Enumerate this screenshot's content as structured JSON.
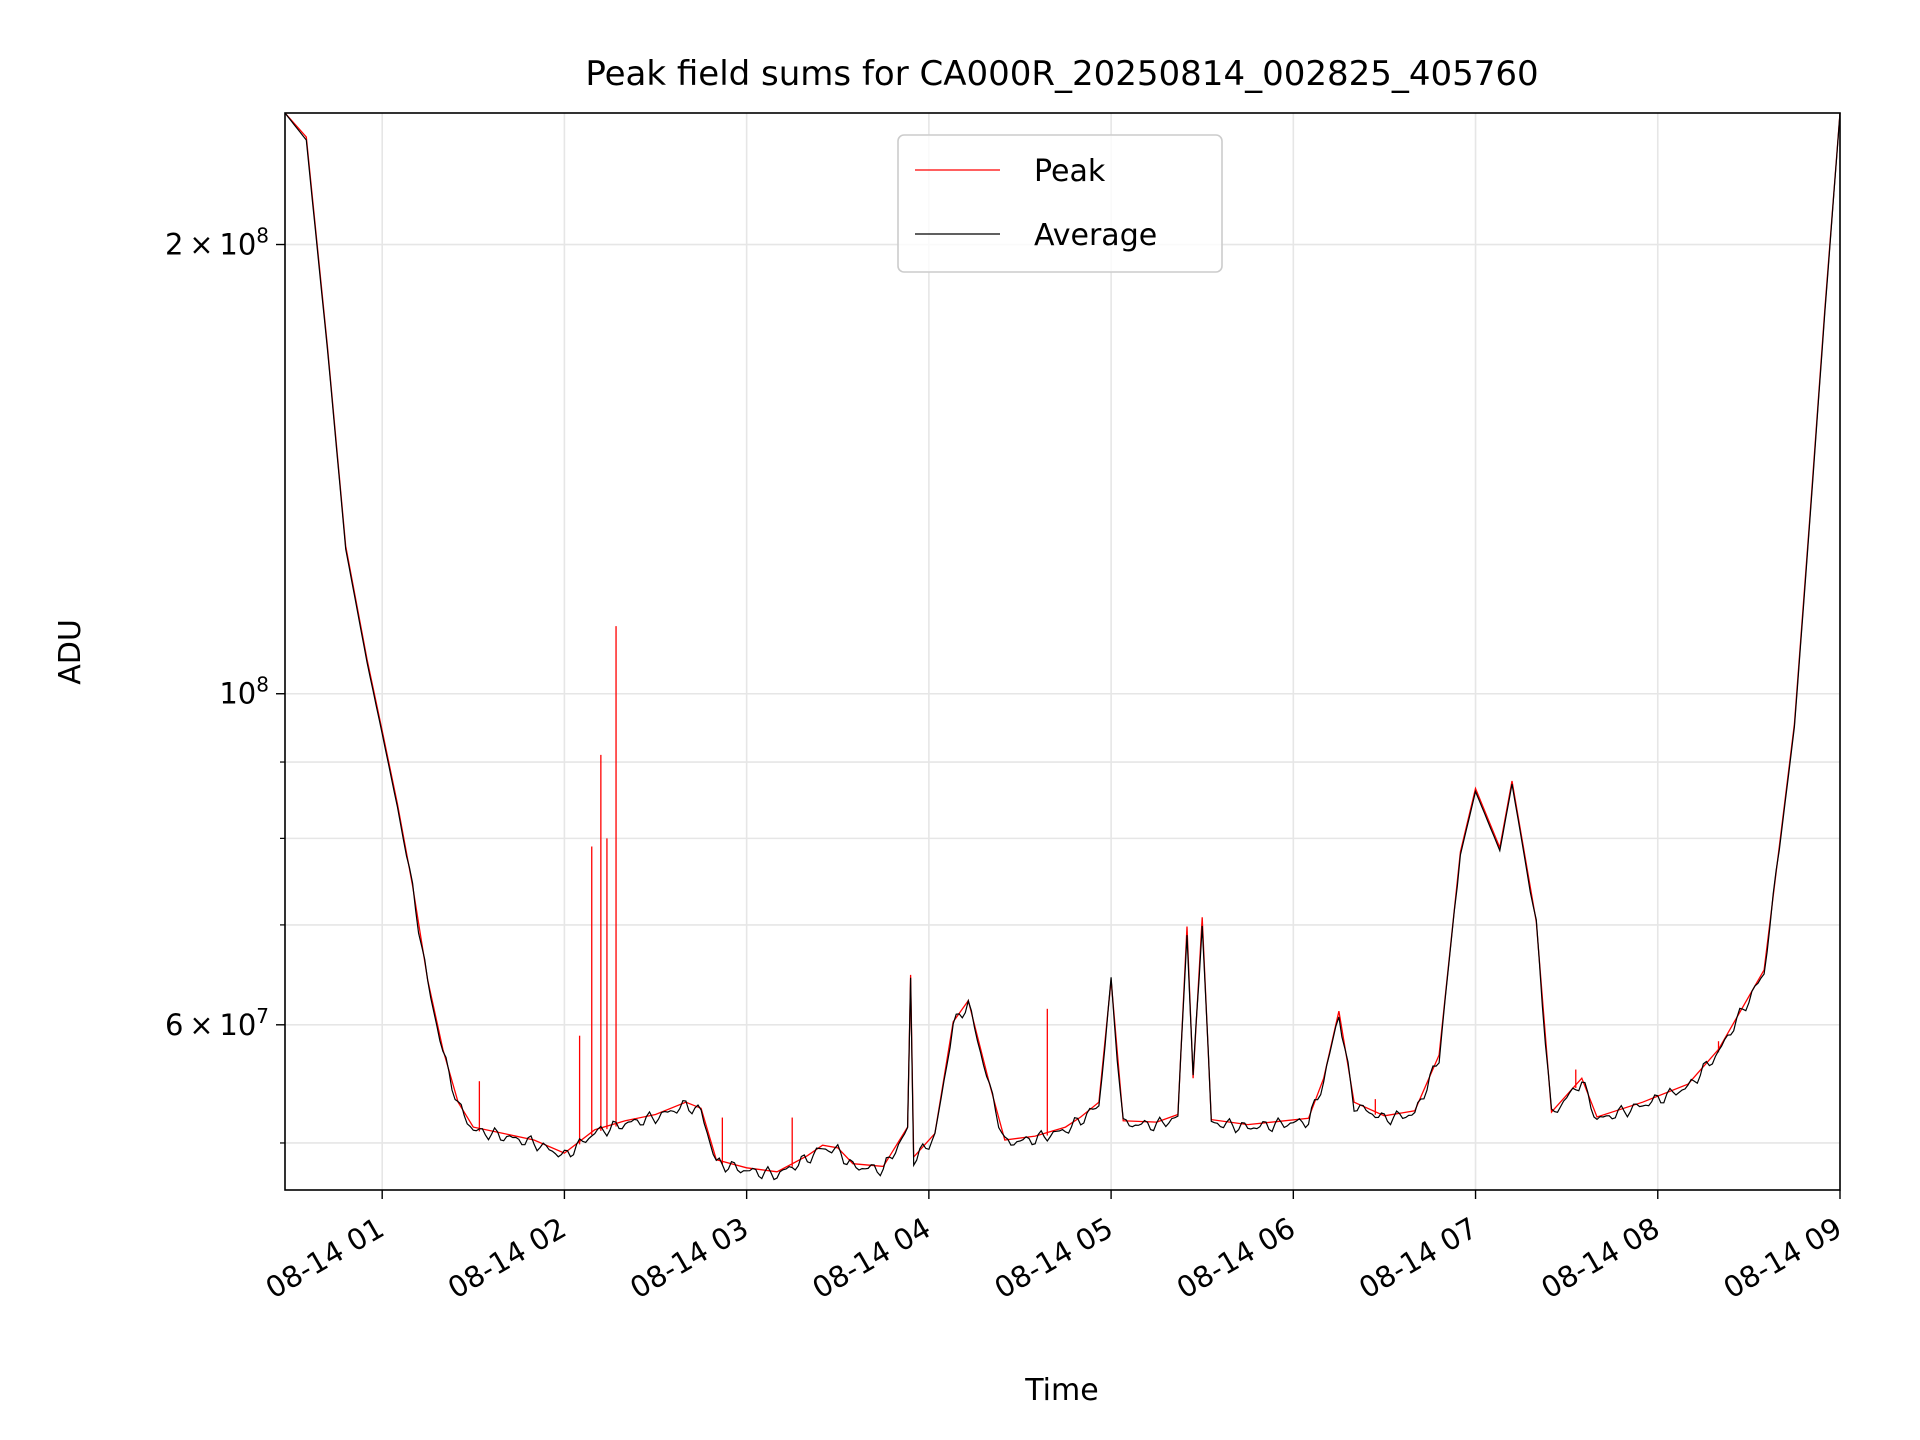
{
  "chart_data": {
    "type": "line",
    "title": "Peak field sums for CA000R_20250814_002825_405760",
    "xlabel": "Time",
    "ylabel": "ADU",
    "y_scale": "log",
    "x_range": [
      "2025-08-14 00:28",
      "2025-08-14 09:00"
    ],
    "ylim": [
      46500000,
      245000000
    ],
    "grid": true,
    "legend": "upper-center",
    "x_ticks": [
      "08-14 01",
      "08-14 02",
      "08-14 03",
      "08-14 04",
      "08-14 05",
      "08-14 06",
      "08-14 07",
      "08-14 08",
      "08-14 09"
    ],
    "x_tick_times": [
      "2025-08-14 01:00",
      "2025-08-14 02:00",
      "2025-08-14 03:00",
      "2025-08-14 04:00",
      "2025-08-14 05:00",
      "2025-08-14 06:00",
      "2025-08-14 07:00",
      "2025-08-14 08:00",
      "2025-08-14 09:00"
    ],
    "y_ticks": [
      {
        "value": 200000000,
        "mantissa": "2",
        "exponent": "8"
      },
      {
        "value": 100000000,
        "mantissa": "",
        "exponent": "8"
      },
      {
        "value": 60000000,
        "mantissa": "6",
        "exponent": "7"
      }
    ],
    "y_minor_ticks": [
      50000000,
      70000000,
      80000000,
      90000000
    ],
    "series": [
      {
        "name": "Average",
        "color": "#000000",
        "points": [
          [
            "2025-08-14 00:28",
            245000000
          ],
          [
            "2025-08-14 00:35",
            235000000
          ],
          [
            "2025-08-14 00:42",
            170000000
          ],
          [
            "2025-08-14 00:48",
            125000000
          ],
          [
            "2025-08-14 00:55",
            105000000
          ],
          [
            "2025-08-14 01:00",
            94000000
          ],
          [
            "2025-08-14 01:05",
            84000000
          ],
          [
            "2025-08-14 01:10",
            74000000
          ],
          [
            "2025-08-14 01:15",
            64000000
          ],
          [
            "2025-08-14 01:20",
            57500000
          ],
          [
            "2025-08-14 01:25",
            53000000
          ],
          [
            "2025-08-14 01:30",
            51000000
          ],
          [
            "2025-08-14 01:40",
            50500000
          ],
          [
            "2025-08-14 01:50",
            50000000
          ],
          [
            "2025-08-14 02:00",
            49000000
          ],
          [
            "2025-08-14 02:10",
            50800000
          ],
          [
            "2025-08-14 02:20",
            51500000
          ],
          [
            "2025-08-14 02:30",
            52000000
          ],
          [
            "2025-08-14 02:40",
            53000000
          ],
          [
            "2025-08-14 02:45",
            52500000
          ],
          [
            "2025-08-14 02:50",
            48500000
          ],
          [
            "2025-08-14 03:00",
            47900000
          ],
          [
            "2025-08-14 03:10",
            47600000
          ],
          [
            "2025-08-14 03:20",
            48800000
          ],
          [
            "2025-08-14 03:25",
            49600000
          ],
          [
            "2025-08-14 03:30",
            49400000
          ],
          [
            "2025-08-14 03:35",
            48200000
          ],
          [
            "2025-08-14 03:45",
            48000000
          ],
          [
            "2025-08-14 03:53",
            51000000
          ],
          [
            "2025-08-14 03:54",
            64500000
          ],
          [
            "2025-08-14 03:55",
            48700000
          ],
          [
            "2025-08-14 04:02",
            50500000
          ],
          [
            "2025-08-14 04:08",
            60000000
          ],
          [
            "2025-08-14 04:13",
            62000000
          ],
          [
            "2025-08-14 04:20",
            54500000
          ],
          [
            "2025-08-14 04:25",
            50000000
          ],
          [
            "2025-08-14 04:35",
            50300000
          ],
          [
            "2025-08-14 04:45",
            51000000
          ],
          [
            "2025-08-14 04:50",
            51800000
          ],
          [
            "2025-08-14 04:56",
            53000000
          ],
          [
            "2025-08-14 05:00",
            64000000
          ],
          [
            "2025-08-14 05:04",
            51500000
          ],
          [
            "2025-08-14 05:15",
            51400000
          ],
          [
            "2025-08-14 05:22",
            52000000
          ],
          [
            "2025-08-14 05:25",
            69500000
          ],
          [
            "2025-08-14 05:27",
            55000000
          ],
          [
            "2025-08-14 05:30",
            70500000
          ],
          [
            "2025-08-14 05:33",
            51600000
          ],
          [
            "2025-08-14 05:45",
            51200000
          ],
          [
            "2025-08-14 06:05",
            51700000
          ],
          [
            "2025-08-14 06:10",
            55000000
          ],
          [
            "2025-08-14 06:15",
            61000000
          ],
          [
            "2025-08-14 06:20",
            53000000
          ],
          [
            "2025-08-14 06:30",
            51900000
          ],
          [
            "2025-08-14 06:40",
            52300000
          ],
          [
            "2025-08-14 06:48",
            57000000
          ],
          [
            "2025-08-14 06:55",
            78000000
          ],
          [
            "2025-08-14 07:00",
            86000000
          ],
          [
            "2025-08-14 07:08",
            78500000
          ],
          [
            "2025-08-14 07:12",
            87000000
          ],
          [
            "2025-08-14 07:20",
            70000000
          ],
          [
            "2025-08-14 07:25",
            52200000
          ],
          [
            "2025-08-14 07:35",
            55000000
          ],
          [
            "2025-08-14 07:40",
            51800000
          ],
          [
            "2025-08-14 07:55",
            53000000
          ],
          [
            "2025-08-14 08:10",
            54500000
          ],
          [
            "2025-08-14 08:20",
            57500000
          ],
          [
            "2025-08-14 08:35",
            65000000
          ],
          [
            "2025-08-14 08:45",
            95000000
          ],
          [
            "2025-08-14 08:50",
            130000000
          ],
          [
            "2025-08-14 08:55",
            180000000
          ],
          [
            "2025-08-14 09:00",
            245000000
          ]
        ]
      },
      {
        "name": "Peak",
        "color": "#ff0000",
        "spikes": [
          [
            "2025-08-14 01:32",
            55000000
          ],
          [
            "2025-08-14 02:05",
            59000000
          ],
          [
            "2025-08-14 02:09",
            79000000
          ],
          [
            "2025-08-14 02:12",
            91000000
          ],
          [
            "2025-08-14 02:14",
            80000000
          ],
          [
            "2025-08-14 02:17",
            111000000
          ],
          [
            "2025-08-14 02:52",
            52000000
          ],
          [
            "2025-08-14 03:15",
            52000000
          ],
          [
            "2025-08-14 04:39",
            61500000
          ],
          [
            "2025-08-14 06:27",
            53500000
          ],
          [
            "2025-08-14 07:33",
            56000000
          ],
          [
            "2025-08-14 08:20",
            58500000
          ]
        ]
      }
    ]
  }
}
